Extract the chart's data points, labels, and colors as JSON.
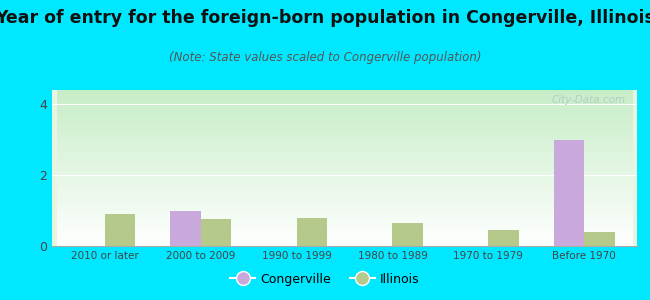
{
  "title": "Year of entry for the foreign-born population in Congerville, Illinois",
  "subtitle": "(Note: State values scaled to Congerville population)",
  "categories": [
    "2010 or later",
    "2000 to 2009",
    "1990 to 1999",
    "1980 to 1989",
    "1970 to 1979",
    "Before 1970"
  ],
  "congerville_values": [
    0,
    1.0,
    0,
    0,
    0,
    3.0
  ],
  "illinois_values": [
    0.9,
    0.75,
    0.8,
    0.65,
    0.45,
    0.4
  ],
  "congerville_color": "#c9a8dc",
  "illinois_color": "#b5c98a",
  "background_outer": "#00e8ff",
  "background_chart_topleft": "#c8e8c0",
  "background_chart_bottomright": "#f0fff0",
  "ylim": [
    0,
    4.4
  ],
  "yticks": [
    0,
    2,
    4
  ],
  "bar_width": 0.32,
  "title_fontsize": 12.5,
  "subtitle_fontsize": 8.5,
  "watermark": "City-Data.com"
}
